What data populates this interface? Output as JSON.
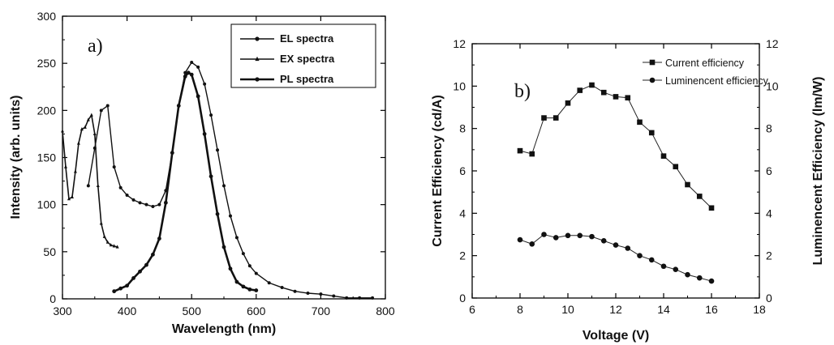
{
  "chart_data": [
    {
      "type": "line",
      "panel_label": "a)",
      "xlabel": "Wavelength (nm)",
      "ylabel": "Intensity (arb. units)",
      "xlim": [
        300,
        800
      ],
      "ylim": [
        0,
        300
      ],
      "xticks": [
        "300",
        "400",
        "500",
        "600",
        "700",
        "800"
      ],
      "yticks": [
        "0",
        "50",
        "100",
        "150",
        "200",
        "250",
        "300"
      ],
      "grid": false,
      "legend": "top-right",
      "series": [
        {
          "name": "EL spectra",
          "marker": "dot",
          "x": [
            340,
            350,
            360,
            370,
            380,
            390,
            400,
            410,
            420,
            430,
            440,
            450,
            460,
            470,
            480,
            490,
            500,
            510,
            520,
            530,
            540,
            550,
            560,
            570,
            580,
            590,
            600,
            620,
            640,
            660,
            680,
            700,
            720,
            740,
            760,
            780
          ],
          "values": [
            120,
            160,
            200,
            205,
            140,
            118,
            110,
            105,
            102,
            100,
            98,
            100,
            115,
            155,
            205,
            240,
            251,
            246,
            228,
            195,
            158,
            120,
            88,
            65,
            48,
            35,
            27,
            17,
            12,
            8,
            6,
            5,
            3,
            1,
            1,
            1
          ]
        },
        {
          "name": "EX spectra",
          "marker": "triangle",
          "x": [
            300,
            305,
            310,
            315,
            320,
            325,
            330,
            335,
            340,
            345,
            350,
            355,
            360,
            365,
            370,
            375,
            380,
            385
          ],
          "values": [
            178,
            140,
            106,
            108,
            135,
            165,
            180,
            182,
            190,
            195,
            175,
            120,
            80,
            66,
            60,
            57,
            56,
            55
          ]
        },
        {
          "name": "PL spectra",
          "marker": "dot",
          "x": [
            380,
            390,
            400,
            410,
            420,
            430,
            440,
            450,
            460,
            470,
            480,
            490,
            495,
            500,
            510,
            520,
            530,
            540,
            550,
            560,
            570,
            580,
            590,
            600
          ],
          "values": [
            8,
            11,
            14,
            22,
            29,
            36,
            47,
            64,
            102,
            155,
            205,
            236,
            240,
            238,
            215,
            175,
            130,
            90,
            55,
            32,
            18,
            13,
            10,
            9
          ]
        }
      ]
    },
    {
      "type": "line",
      "panel_label": "b)",
      "xlabel": "Voltage (V)",
      "ylabel": "Current Efficiency (cd/A)",
      "ylabel_right": "Luminencent Efficiency (lm/W)",
      "xlim": [
        6,
        18
      ],
      "ylim": [
        0,
        12
      ],
      "ylim_right": [
        0,
        12
      ],
      "xticks": [
        "6",
        "8",
        "10",
        "12",
        "14",
        "16",
        "18"
      ],
      "yticks": [
        "0",
        "2",
        "4",
        "6",
        "8",
        "10",
        "12"
      ],
      "yticks_right": [
        "0",
        "2",
        "4",
        "6",
        "8",
        "10",
        "12"
      ],
      "grid": false,
      "legend": "top-right",
      "x": [
        8,
        8.5,
        9,
        9.5,
        10,
        10.5,
        11,
        11.5,
        12,
        12.5,
        13,
        13.5,
        14,
        14.5,
        15,
        15.5,
        16
      ],
      "series": [
        {
          "name": "Current efficiency",
          "marker": "square",
          "values": [
            6.95,
            6.8,
            8.5,
            8.5,
            9.2,
            9.8,
            10.05,
            9.7,
            9.5,
            9.45,
            8.3,
            7.8,
            6.7,
            6.2,
            5.35,
            4.8,
            4.25
          ]
        },
        {
          "name": "Luminencent efficiency",
          "marker": "circle",
          "values": [
            2.75,
            2.55,
            3.0,
            2.85,
            2.95,
            2.95,
            2.9,
            2.7,
            2.5,
            2.35,
            2.0,
            1.8,
            1.5,
            1.35,
            1.1,
            0.95,
            0.8
          ]
        }
      ]
    }
  ]
}
